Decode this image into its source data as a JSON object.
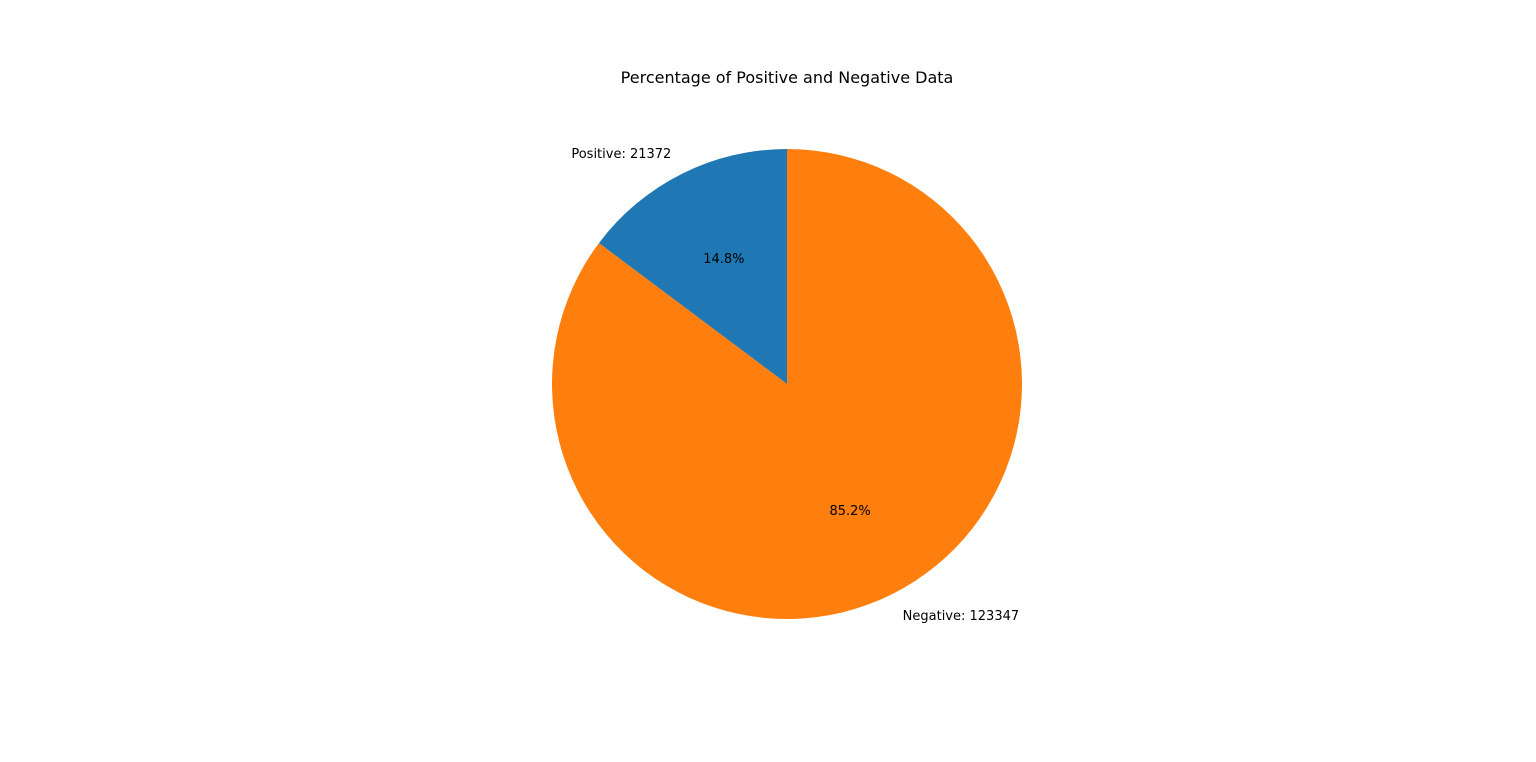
{
  "chart_data": {
    "type": "pie",
    "title": "Percentage of Positive and Negative Data",
    "slices": [
      {
        "label": "Positive: 21372",
        "value": 21372,
        "percent_label": "14.8%",
        "color": "#1f77b4"
      },
      {
        "label": "Negative: 123347",
        "value": 123347,
        "percent_label": "85.2%",
        "color": "#ff7f0e"
      }
    ],
    "start_angle_deg": 90,
    "direction": "counterclockwise",
    "legend": "none"
  }
}
